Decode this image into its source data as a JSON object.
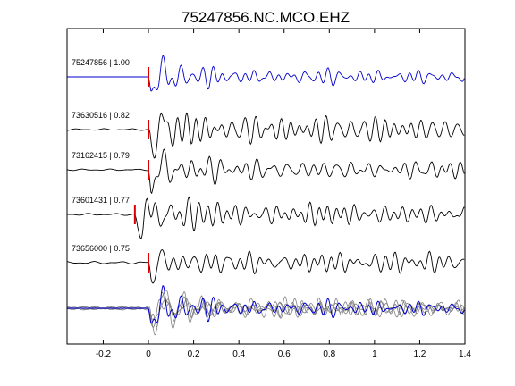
{
  "chart_data": {
    "type": "line",
    "title": "75247856.NC.MCO.EHZ",
    "xlabel": "",
    "ylabel": "",
    "xlim": [
      -0.36,
      1.4
    ],
    "xticks": [
      -0.2,
      0,
      0.2,
      0.4,
      0.6,
      0.8,
      1,
      1.2,
      1.4
    ],
    "xtick_labels": [
      "-0.2",
      "0",
      "0.2",
      "0.4",
      "0.6",
      "0.8",
      "1",
      "1.2",
      "1.4"
    ],
    "grid": false,
    "legend": "none",
    "traces": [
      {
        "label": "75247856 | 1.00",
        "color": "#0000cc",
        "marker_x": 0.0
      },
      {
        "label": "73630516 | 0.82",
        "color": "#000000",
        "marker_x": 0.0
      },
      {
        "label": "73162415 | 0.79",
        "color": "#000000",
        "marker_x": 0.0
      },
      {
        "label": "73601431 | 0.77",
        "color": "#000000",
        "marker_x": -0.06
      },
      {
        "label": "73656000 | 0.75",
        "color": "#000000",
        "marker_x": 0.0
      }
    ],
    "stack": {
      "reference_color": "#0000cc",
      "others_color": "#808080"
    },
    "marker_color": "#dd0000"
  }
}
